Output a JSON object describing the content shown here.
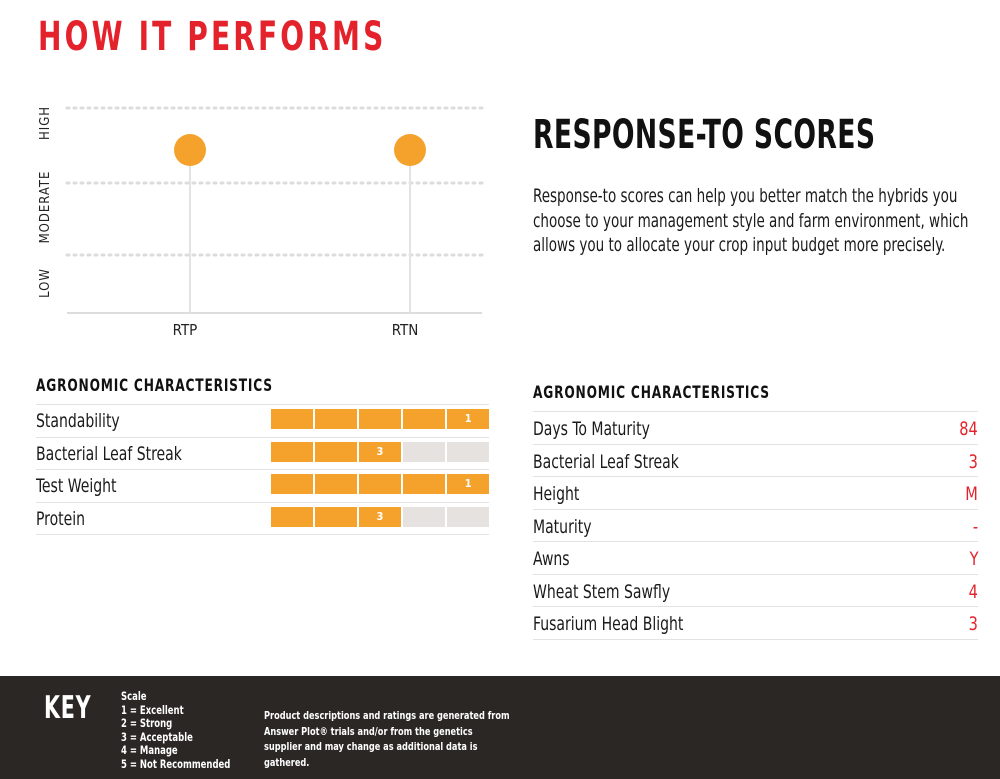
{
  "title": "HOW IT PERFORMS",
  "chart_data": {
    "type": "scatter",
    "categories": [
      "RTP",
      "RTN"
    ],
    "y_levels": [
      "LOW",
      "MODERATE",
      "HIGH"
    ],
    "values": [
      "HIGH",
      "HIGH"
    ],
    "point_color": "#f5a22d",
    "grid": true
  },
  "response": {
    "heading": "RESPONSE-TO SCORES",
    "text": "Response-to scores can help you better match the hybrids you choose to your management style and farm environment, which allows you to allocate your crop input budget more precisely."
  },
  "left_section": {
    "heading": "AGRONOMIC CHARACTERISTICS",
    "rows": [
      {
        "name": "Standability",
        "score": 1,
        "label": "1"
      },
      {
        "name": "Bacterial Leaf Streak",
        "score": 3,
        "label": "3"
      },
      {
        "name": "Test Weight",
        "score": 1,
        "label": "1"
      },
      {
        "name": "Protein",
        "score": 3,
        "label": "3"
      }
    ]
  },
  "right_section": {
    "heading": "AGRONOMIC CHARACTERISTICS",
    "rows": [
      {
        "name": "Days To Maturity",
        "value": "84"
      },
      {
        "name": "Bacterial Leaf Streak",
        "value": "3"
      },
      {
        "name": "Height",
        "value": "M"
      },
      {
        "name": "Maturity",
        "value": "-"
      },
      {
        "name": "Awns",
        "value": "Y"
      },
      {
        "name": "Wheat Stem Sawfly",
        "value": "4"
      },
      {
        "name": "Fusarium Head Blight",
        "value": "3"
      }
    ]
  },
  "footer": {
    "key_label": "KEY",
    "scale_lines": [
      "Scale",
      "1 = Excellent",
      "2 = Strong",
      "3 = Acceptable",
      "4 = Manage",
      "5 = Not Recommended"
    ],
    "disclaimer": "Product descriptions and ratings are generated from Answer Plot® trials and/or from the genetics supplier and may change as additional data is gathered."
  },
  "colors": {
    "accent_red": "#e3222b",
    "bar_orange": "#f5a22d",
    "bar_empty": "#e5e2df",
    "footer_bg": "#2a2724"
  }
}
